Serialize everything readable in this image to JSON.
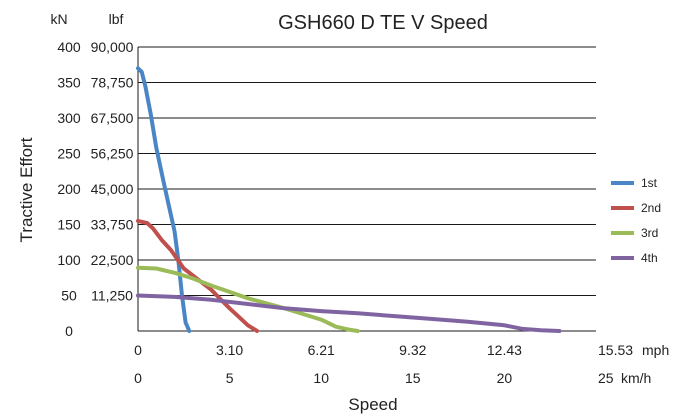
{
  "chart_data": {
    "type": "line",
    "title": "GSH660 D TE V Speed",
    "xlabel": "Speed",
    "ylabel": "Tractive Effort",
    "y_units": [
      "kN",
      "lbf"
    ],
    "x_units": [
      "mph",
      "km/h"
    ],
    "xlim_kmh": [
      0,
      25
    ],
    "ylim_kn": [
      0,
      400
    ],
    "y_ticks_kn": [
      "0",
      "50",
      "100",
      "150",
      "200",
      "250",
      "300",
      "350",
      "400"
    ],
    "y_ticks_lbf": [
      "",
      "11,250",
      "22,500",
      "33,750",
      "45,000",
      "56,250",
      "67,500",
      "78,750",
      "90,000"
    ],
    "x_ticks_mph": [
      "0",
      "3.10",
      "6.21",
      "9.32",
      "12.43",
      "15.53"
    ],
    "x_ticks_kmh": [
      "0",
      "5",
      "10",
      "15",
      "20",
      "25"
    ],
    "grid": "horizontal",
    "legend_position": "right",
    "series": [
      {
        "name": "1st",
        "color": "#4a86c5",
        "points": [
          [
            0,
            370
          ],
          [
            0.2,
            365
          ],
          [
            0.4,
            345
          ],
          [
            0.7,
            305
          ],
          [
            1.0,
            258
          ],
          [
            1.4,
            210
          ],
          [
            1.7,
            175
          ],
          [
            2.0,
            140
          ],
          [
            2.2,
            100
          ],
          [
            2.4,
            50
          ],
          [
            2.6,
            12
          ],
          [
            2.8,
            0
          ]
        ]
      },
      {
        "name": "2nd",
        "color": "#c0504d",
        "points": [
          [
            0,
            155
          ],
          [
            0.5,
            152
          ],
          [
            0.8,
            145
          ],
          [
            1.3,
            128
          ],
          [
            1.8,
            114
          ],
          [
            2.5,
            88
          ],
          [
            3.0,
            78
          ],
          [
            3.5,
            68
          ],
          [
            4.0,
            58
          ],
          [
            4.5,
            45
          ],
          [
            5.0,
            32
          ],
          [
            5.5,
            20
          ],
          [
            6.0,
            8
          ],
          [
            6.5,
            0
          ]
        ]
      },
      {
        "name": "3rd",
        "color": "#9bbb59",
        "points": [
          [
            0,
            89
          ],
          [
            1.0,
            88
          ],
          [
            2.0,
            82
          ],
          [
            3.0,
            74
          ],
          [
            4.0,
            64
          ],
          [
            5.0,
            55
          ],
          [
            6.0,
            46
          ],
          [
            7.0,
            39
          ],
          [
            8.0,
            32
          ],
          [
            9.0,
            24
          ],
          [
            10.0,
            16
          ],
          [
            10.8,
            6
          ],
          [
            11.5,
            2
          ],
          [
            12.0,
            0
          ]
        ]
      },
      {
        "name": "4th",
        "color": "#8064a2",
        "points": [
          [
            0,
            50
          ],
          [
            2.0,
            48
          ],
          [
            4.0,
            44
          ],
          [
            6.0,
            38
          ],
          [
            8.0,
            32
          ],
          [
            10.0,
            28
          ],
          [
            12.0,
            25
          ],
          [
            14.0,
            21
          ],
          [
            16.0,
            17
          ],
          [
            18.0,
            13
          ],
          [
            20.0,
            8
          ],
          [
            21.0,
            3
          ],
          [
            22.0,
            1
          ],
          [
            23.0,
            0
          ]
        ]
      }
    ]
  }
}
